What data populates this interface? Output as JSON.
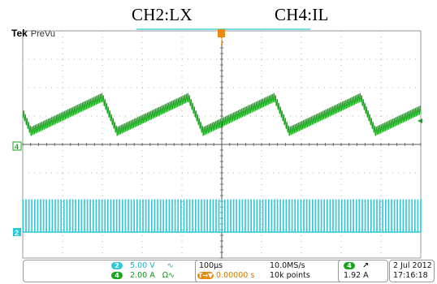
{
  "captions": {
    "ch2": "CH2:LX",
    "ch4": "CH4:IL"
  },
  "header": {
    "brand": "Tek",
    "mode": "PreVu"
  },
  "markers": {
    "trigger_top": "T",
    "ch4_marker": "4",
    "ch2_marker": "2"
  },
  "channels": {
    "ch2": {
      "badge": "2",
      "scale": "5.00 V",
      "coupling": "∿",
      "color": "#2bc9d8"
    },
    "ch4": {
      "badge": "4",
      "scale": "2.00 A",
      "coupling": "Ω∿",
      "color": "#18a61c"
    }
  },
  "timebase": {
    "scale": "100µs",
    "sample_rate": "10.0MS/s",
    "position": "0.00000 s",
    "position_icon": "T→▼",
    "record_length": "10k points"
  },
  "trigger": {
    "source_badge": "4",
    "slope_icon": "↗",
    "level": "1.92 A"
  },
  "datetime": {
    "date": "2 Jul  2012",
    "time": "17:16:18"
  },
  "colors": {
    "grid": "#9a9a9a",
    "ch2": "#2bc9d8",
    "ch4": "#18a61c",
    "trigger": "#e88a10",
    "background": "#ffffff"
  }
}
